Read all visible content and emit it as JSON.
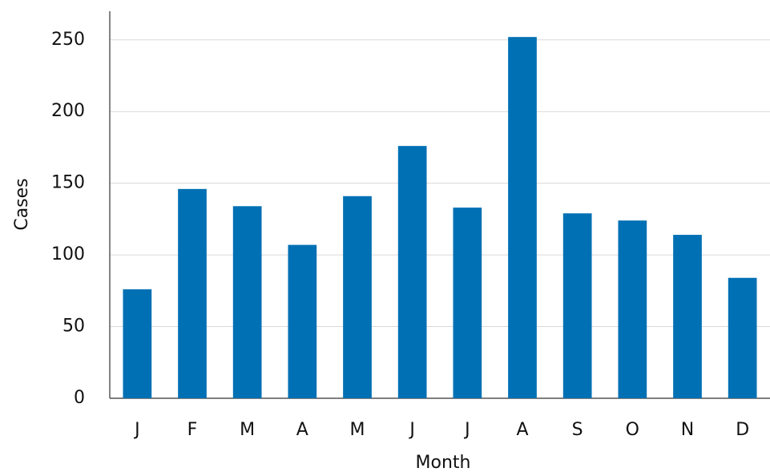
{
  "chart_data": {
    "type": "bar",
    "x_label": "Month",
    "y_label": "Cases",
    "categories": [
      "J",
      "F",
      "M",
      "A",
      "M",
      "J",
      "J",
      "A",
      "S",
      "O",
      "N",
      "D"
    ],
    "values": [
      76,
      146,
      134,
      107,
      141,
      176,
      133,
      252,
      129,
      124,
      114,
      84
    ],
    "color": "#0070b4",
    "ylim": [
      0,
      270
    ],
    "yticks": [
      0,
      50,
      100,
      150,
      200,
      250
    ],
    "grid": true
  }
}
